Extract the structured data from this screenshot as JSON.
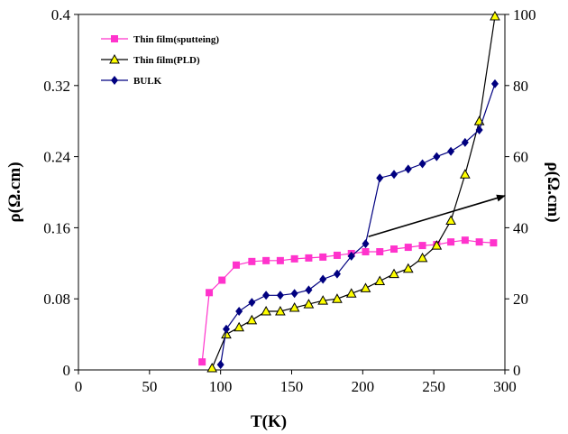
{
  "chart_data": {
    "type": "line",
    "xlabel": "T(K)",
    "ylabel_left": "ρ(Ω.cm)",
    "ylabel_right": "ρ(Ω.cm)",
    "xlim": [
      0,
      300
    ],
    "ylim_left": [
      0,
      0.4
    ],
    "ylim_right": [
      0,
      100
    ],
    "x_ticks": [
      "0",
      "50",
      "100",
      "150",
      "200",
      "250",
      "300"
    ],
    "y_left_ticks": [
      "0",
      "0.08",
      "0.16",
      "0.24",
      "0.32",
      "0.4"
    ],
    "y_right_ticks": [
      "0",
      "20",
      "40",
      "60",
      "80",
      "100"
    ],
    "grid": false,
    "legend_position": "top-left",
    "series": [
      {
        "name": "Thin film(sputteing)",
        "axis": "left",
        "color": "#ff33cc",
        "marker": "square",
        "x": [
          87,
          92,
          101,
          111,
          122,
          132,
          142,
          152,
          162,
          172,
          182,
          192,
          202,
          212,
          222,
          232,
          242,
          252,
          262,
          272,
          282,
          292
        ],
        "y": [
          0.009,
          0.087,
          0.101,
          0.118,
          0.122,
          0.123,
          0.123,
          0.125,
          0.126,
          0.127,
          0.129,
          0.131,
          0.133,
          0.133,
          0.136,
          0.138,
          0.14,
          0.141,
          0.144,
          0.146,
          0.144,
          0.143
        ]
      },
      {
        "name": "Thin film(PLD)",
        "axis": "right",
        "color": "#ffff00",
        "marker": "triangle",
        "x": [
          94,
          104,
          113,
          122,
          132,
          142,
          152,
          162,
          172,
          182,
          192,
          202,
          212,
          222,
          232,
          242,
          252,
          262,
          272,
          282,
          293
        ],
        "y": [
          0.5,
          10,
          12,
          14,
          16.5,
          16.5,
          17.5,
          18.5,
          19.5,
          20,
          21.5,
          23,
          25,
          27,
          28.5,
          31.5,
          35,
          42,
          55,
          70,
          99.5
        ]
      },
      {
        "name": "BULK",
        "axis": "right",
        "color": "#000080",
        "marker": "diamond",
        "x": [
          100,
          104,
          113,
          122,
          132,
          142,
          152,
          162,
          172,
          182,
          192,
          202,
          212,
          222,
          232,
          242,
          252,
          262,
          272,
          282,
          293
        ],
        "y": [
          1.5,
          11.5,
          16.5,
          19,
          21,
          21,
          21.5,
          22.5,
          25.5,
          27,
          32,
          35.5,
          54,
          55,
          56.5,
          58,
          60,
          61.5,
          64,
          67.5,
          80.5
        ]
      }
    ],
    "annotations": [
      {
        "type": "arrow",
        "from": [
          204,
          0.15
        ],
        "to": [
          300,
          0.196
        ]
      }
    ]
  }
}
